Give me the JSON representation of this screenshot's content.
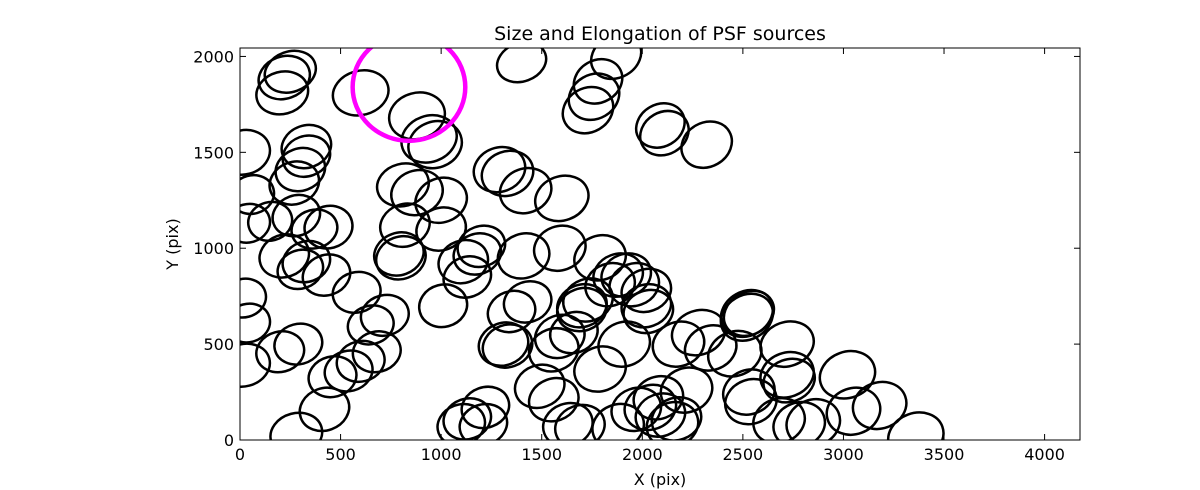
{
  "chart_data": {
    "type": "scatter",
    "title": "Size and Elongation of PSF sources",
    "xlabel": "X (pix)",
    "ylabel": "Y (pix)",
    "xlim": [
      0,
      4176
    ],
    "ylim": [
      0,
      2044
    ],
    "xticks": [
      0,
      500,
      1000,
      1500,
      2000,
      2500,
      3000,
      3500,
      4000
    ],
    "yticks": [
      0,
      500,
      1000,
      1500,
      2000
    ],
    "grid": false,
    "marker": "ellipse",
    "edge_color": "#000000",
    "highlight_color": "#ff00ff",
    "series": [
      {
        "points": [
          [
            220,
            1890,
            130,
            110,
            20
          ],
          [
            250,
            1920,
            130,
            105,
            20
          ],
          [
            210,
            1810,
            130,
            110,
            15
          ],
          [
            600,
            1810,
            140,
            115,
            15
          ],
          [
            880,
            1690,
            140,
            120,
            15
          ],
          [
            940,
            1570,
            140,
            120,
            20
          ],
          [
            970,
            1540,
            135,
            120,
            20
          ],
          [
            1400,
            1970,
            125,
            100,
            20
          ],
          [
            1870,
            2000,
            130,
            110,
            30
          ],
          [
            1780,
            1870,
            125,
            110,
            30
          ],
          [
            1760,
            1790,
            130,
            115,
            30
          ],
          [
            1730,
            1720,
            130,
            115,
            30
          ],
          [
            2090,
            1640,
            125,
            110,
            30
          ],
          [
            2110,
            1600,
            125,
            110,
            30
          ],
          [
            2320,
            1540,
            130,
            115,
            30
          ],
          [
            20,
            1500,
            130,
            115,
            15
          ],
          [
            330,
            1530,
            125,
            110,
            20
          ],
          [
            330,
            1480,
            120,
            105,
            20
          ],
          [
            300,
            1410,
            125,
            110,
            20
          ],
          [
            270,
            1340,
            125,
            110,
            20
          ],
          [
            60,
            1280,
            110,
            100,
            15
          ],
          [
            40,
            1130,
            110,
            100,
            15
          ],
          [
            150,
            1140,
            110,
            100,
            15
          ],
          [
            280,
            1170,
            120,
            105,
            20
          ],
          [
            440,
            1110,
            120,
            110,
            15
          ],
          [
            370,
            1100,
            115,
            100,
            15
          ],
          [
            810,
            1330,
            130,
            110,
            15
          ],
          [
            880,
            1290,
            130,
            115,
            20
          ],
          [
            1000,
            1250,
            130,
            115,
            20
          ],
          [
            820,
            1120,
            125,
            110,
            20
          ],
          [
            1000,
            1100,
            125,
            110,
            20
          ],
          [
            790,
            970,
            125,
            110,
            20
          ],
          [
            800,
            950,
            125,
            110,
            20
          ],
          [
            1290,
            1410,
            130,
            115,
            20
          ],
          [
            1330,
            1390,
            130,
            115,
            20
          ],
          [
            1420,
            1300,
            130,
            115,
            20
          ],
          [
            1600,
            1260,
            135,
            115,
            20
          ],
          [
            220,
            960,
            125,
            110,
            20
          ],
          [
            330,
            930,
            120,
            105,
            20
          ],
          [
            300,
            890,
            115,
            100,
            20
          ],
          [
            430,
            860,
            120,
            105,
            20
          ],
          [
            580,
            770,
            120,
            105,
            15
          ],
          [
            1110,
            930,
            125,
            110,
            20
          ],
          [
            1180,
            970,
            120,
            105,
            20
          ],
          [
            1200,
            1010,
            120,
            105,
            20
          ],
          [
            1130,
            850,
            120,
            105,
            20
          ],
          [
            1410,
            960,
            130,
            115,
            20
          ],
          [
            1590,
            1000,
            130,
            115,
            20
          ],
          [
            1790,
            950,
            130,
            115,
            20
          ],
          [
            20,
            740,
            110,
            100,
            15
          ],
          [
            40,
            610,
            110,
            100,
            15
          ],
          [
            720,
            650,
            120,
            105,
            15
          ],
          [
            650,
            600,
            115,
            100,
            15
          ],
          [
            1010,
            700,
            120,
            110,
            15
          ],
          [
            1350,
            670,
            120,
            105,
            20
          ],
          [
            1430,
            720,
            120,
            105,
            20
          ],
          [
            1700,
            700,
            125,
            110,
            20
          ],
          [
            1700,
            680,
            125,
            110,
            20
          ],
          [
            1730,
            730,
            125,
            110,
            20
          ],
          [
            1840,
            810,
            125,
            110,
            20
          ],
          [
            1880,
            860,
            125,
            110,
            20
          ],
          [
            1920,
            860,
            125,
            110,
            20
          ],
          [
            1960,
            810,
            125,
            110,
            20
          ],
          [
            2020,
            780,
            125,
            110,
            20
          ],
          [
            2020,
            700,
            125,
            110,
            20
          ],
          [
            2030,
            670,
            125,
            110,
            20
          ],
          [
            2520,
            660,
            135,
            115,
            30
          ],
          [
            2520,
            640,
            135,
            115,
            30
          ],
          [
            2530,
            660,
            130,
            110,
            30
          ],
          [
            200,
            460,
            120,
            105,
            15
          ],
          [
            290,
            500,
            120,
            105,
            15
          ],
          [
            20,
            390,
            130,
            110,
            15
          ],
          [
            680,
            460,
            120,
            105,
            15
          ],
          [
            600,
            410,
            120,
            105,
            15
          ],
          [
            540,
            360,
            120,
            105,
            15
          ],
          [
            460,
            330,
            120,
            105,
            15
          ],
          [
            420,
            160,
            125,
            110,
            20
          ],
          [
            280,
            30,
            130,
            110,
            15
          ],
          [
            1310,
            500,
            125,
            110,
            20
          ],
          [
            1330,
            490,
            125,
            110,
            20
          ],
          [
            1560,
            470,
            125,
            110,
            20
          ],
          [
            1590,
            540,
            125,
            110,
            20
          ],
          [
            1660,
            560,
            120,
            105,
            20
          ],
          [
            1910,
            500,
            130,
            115,
            20
          ],
          [
            1790,
            370,
            130,
            115,
            20
          ],
          [
            1490,
            280,
            125,
            110,
            20
          ],
          [
            1560,
            210,
            125,
            110,
            20
          ],
          [
            2180,
            500,
            130,
            115,
            20
          ],
          [
            2280,
            560,
            135,
            115,
            20
          ],
          [
            2340,
            480,
            130,
            115,
            20
          ],
          [
            2460,
            450,
            135,
            115,
            20
          ],
          [
            2720,
            500,
            135,
            115,
            20
          ],
          [
            2720,
            340,
            135,
            115,
            20
          ],
          [
            2730,
            310,
            130,
            110,
            20
          ],
          [
            3020,
            340,
            140,
            120,
            20
          ],
          [
            2530,
            250,
            130,
            115,
            20
          ],
          [
            2540,
            200,
            130,
            115,
            20
          ],
          [
            2220,
            260,
            130,
            115,
            20
          ],
          [
            2080,
            220,
            125,
            110,
            20
          ],
          [
            2040,
            170,
            130,
            115,
            20
          ],
          [
            1970,
            160,
            125,
            110,
            20
          ],
          [
            2090,
            130,
            125,
            110,
            20
          ],
          [
            2170,
            110,
            125,
            110,
            20
          ],
          [
            1220,
            170,
            120,
            105,
            20
          ],
          [
            1130,
            110,
            120,
            105,
            20
          ],
          [
            1100,
            80,
            120,
            105,
            20
          ],
          [
            1210,
            80,
            120,
            105,
            20
          ],
          [
            1630,
            80,
            125,
            110,
            20
          ],
          [
            1690,
            70,
            125,
            110,
            20
          ],
          [
            1880,
            70,
            130,
            115,
            20
          ],
          [
            2150,
            80,
            130,
            115,
            20
          ],
          [
            2680,
            100,
            130,
            115,
            20
          ],
          [
            2780,
            80,
            130,
            115,
            20
          ],
          [
            2850,
            90,
            135,
            120,
            20
          ],
          [
            3050,
            150,
            135,
            120,
            20
          ],
          [
            3180,
            180,
            135,
            120,
            20
          ],
          [
            3360,
            20,
            140,
            120,
            20
          ]
        ]
      }
    ],
    "highlight": [
      [
        840,
        1840,
        280,
        280,
        0
      ]
    ]
  }
}
